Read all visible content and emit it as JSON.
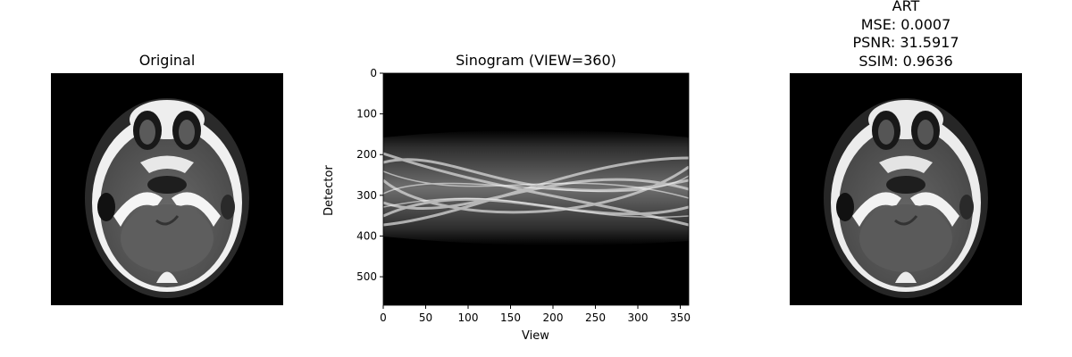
{
  "panels": {
    "original": {
      "title": "Original"
    },
    "sinogram": {
      "title": "Sinogram (VIEW=360)"
    },
    "reconstruction": {
      "title_lines": [
        "ART",
        "MSE: 0.0007",
        "PSNR: 31.5917",
        "SSIM: 0.9636"
      ]
    }
  },
  "chart_data": [
    {
      "type": "heatmap",
      "title": "Original",
      "colormap": "gray",
      "axes": "off"
    },
    {
      "type": "heatmap",
      "title": "Sinogram (VIEW=360)",
      "xlabel": "View",
      "ylabel": "Detector",
      "xlim": [
        0,
        360
      ],
      "ylim": [
        570,
        0
      ],
      "xticks": [
        0,
        50,
        100,
        150,
        200,
        250,
        300,
        350
      ],
      "yticks": [
        0,
        100,
        200,
        300,
        400,
        500
      ],
      "colormap": "gray",
      "signal_band": [
        135,
        435
      ]
    },
    {
      "type": "heatmap",
      "title": "ART",
      "annotations": [
        "MSE: 0.0007",
        "PSNR: 31.5917",
        "SSIM: 0.9636"
      ],
      "colormap": "gray",
      "axes": "off"
    }
  ],
  "icons": {
    "ct_slice": "ct-head-slice-image"
  }
}
